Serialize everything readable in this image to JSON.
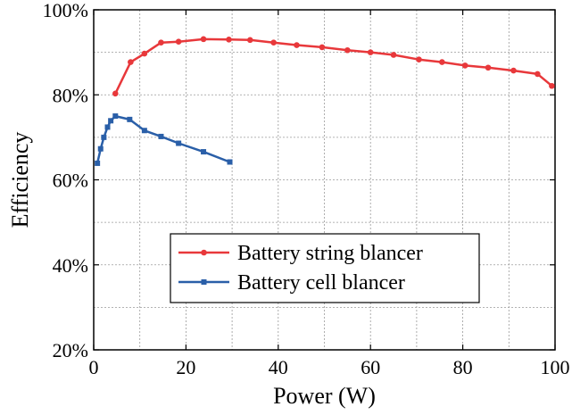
{
  "chart_data": {
    "type": "line",
    "title": "",
    "xlabel": "Power (W)",
    "ylabel": "Efficiency",
    "xlim": [
      0,
      100
    ],
    "ylim": [
      20,
      100
    ],
    "x_ticks": [
      0,
      20,
      40,
      60,
      80,
      100
    ],
    "x_tick_labels": [
      "0",
      "20",
      "40",
      "60",
      "80",
      "100"
    ],
    "y_ticks": [
      20,
      40,
      60,
      80,
      100
    ],
    "y_tick_labels": [
      "20%",
      "40%",
      "60%",
      "80%",
      "100%"
    ],
    "grid": "dotted, every 10 units on both axes",
    "legend_position": "lower-center",
    "series": [
      {
        "name": "Battery string blancer",
        "color": "#e8383b",
        "marker": "circle",
        "x": [
          4.7,
          8.0,
          11.0,
          14.6,
          18.4,
          23.8,
          29.3,
          33.9,
          39.0,
          44.0,
          49.5,
          55.0,
          60.0,
          65.0,
          70.5,
          75.5,
          80.5,
          85.5,
          91.0,
          96.2,
          99.3
        ],
        "y": [
          80.3,
          87.7,
          89.7,
          92.3,
          92.5,
          93.1,
          93.0,
          92.9,
          92.3,
          91.7,
          91.2,
          90.5,
          90.0,
          89.4,
          88.3,
          87.7,
          86.9,
          86.4,
          85.7,
          84.9,
          82.1
        ]
      },
      {
        "name": "Battery cell blancer",
        "color": "#2a5fa8",
        "marker": "square",
        "x": [
          0.8,
          1.5,
          2.2,
          3.0,
          3.7,
          4.7,
          7.8,
          11.0,
          14.6,
          18.4,
          23.8,
          29.5
        ],
        "y": [
          63.9,
          67.3,
          70.0,
          72.4,
          73.9,
          75.0,
          74.2,
          71.6,
          70.2,
          68.6,
          66.6,
          64.2
        ]
      }
    ]
  }
}
